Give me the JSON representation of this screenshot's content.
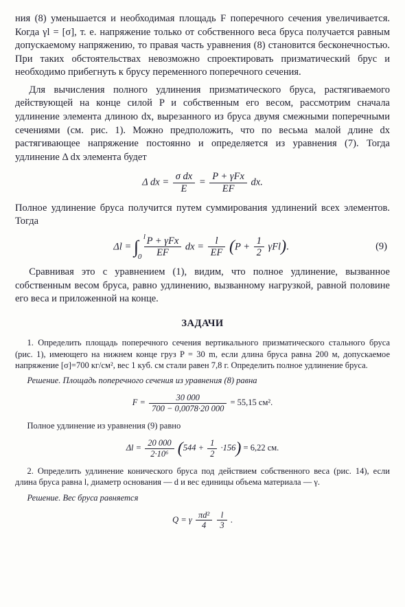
{
  "paragraph_1": "ния (8) уменьшается и необходимая площадь F поперечного сечения увеличивается. Когда γl = [σ], т. е. напряжение только от собственного веса бруса получается равным допускаемому напряжению, то правая часть уравнения (8) становится бесконечностью. При таких обстоятельствах невозможно спроектировать призматический брус и необходимо прибегнуть к брусу переменного поперечного сечения.",
  "paragraph_2": "Для вычисления полного удлинения призматического бруса, растягиваемого действующей на конце силой P и собственным его весом, рассмотрим сначала удлинение элемента длиною dx, вырезанного из бруса двумя смежными поперечными сечениями (см. рис. 1). Можно предположить, что по весьма малой длине dx растягивающее напряжение постоянно и определяется из уравнения (7). Тогда удлинение Δ dx элемента будет",
  "formula_1": {
    "left": "Δ dx =",
    "frac1_top": "σ dx",
    "frac1_bot": "E",
    "eq": "=",
    "frac2_top": "P + γFx",
    "frac2_bot": "EF",
    "tail": " dx."
  },
  "paragraph_3": "Полное удлинение бруса получится путем суммирования удлинений всех элементов. Тогда",
  "formula_2": {
    "left": "Δl =",
    "int_upper": "l",
    "int_lower": "0",
    "frac_top": "P + γFx",
    "frac_bot": "EF",
    "mid": " dx =",
    "frac2_top": "l",
    "frac2_bot": "EF",
    "paren_inner_a": "P +",
    "paren_frac_top": "1",
    "paren_frac_bot": "2",
    "paren_inner_b": " γFl",
    "number": "(9)"
  },
  "paragraph_4": "Сравнивая это с уравнением (1), видим, что полное удлинение, вызванное собственным весом бруса, равно удлинению, вызванному нагрузкой, равной половине его веса и приложенной на конце.",
  "heading": "ЗАДАЧИ",
  "problem_1": "1. Определить площадь поперечного сечения вертикального призматического стального бруса (рис. 1), имеющего на нижнем конце груз P = 30 m, если длина бруса равна 200 м, допускаемое напряжение [σ]=700 кг/см², вес 1 куб. см стали равен 7,8 г. Определить полное удлинение бруса.",
  "solution_1_intro": "Решение. Площадь поперечного сечения из уравнения (8) равна",
  "formula_3": {
    "left": "F =",
    "top": "30 000",
    "bot": "700 − 0,0078·20 000",
    "eq": "= 55,15 см²."
  },
  "solution_1_mid": "Полное удлинение из уравнения (9) равно",
  "formula_4": {
    "left": "Δl =",
    "ftop": "20 000",
    "fbot": "2·10⁶",
    "paren_a": "544 +",
    "pf_top": "1",
    "pf_bot": "2",
    "paren_b": "·156",
    "eq": "= 6,22 см."
  },
  "problem_2": "2. Определить удлинение конического бруса под действием собственного веса (рис. 14), если длина бруса равна l, диаметр основания — d и вес единицы объема материала — γ.",
  "solution_2_intro": "Решение. Вес бруса равняется",
  "formula_5": {
    "left": "Q = γ",
    "f1_top": "πd²",
    "f1_bot": "4",
    "f2_top": "l",
    "f2_bot": "3",
    "tail": "."
  }
}
